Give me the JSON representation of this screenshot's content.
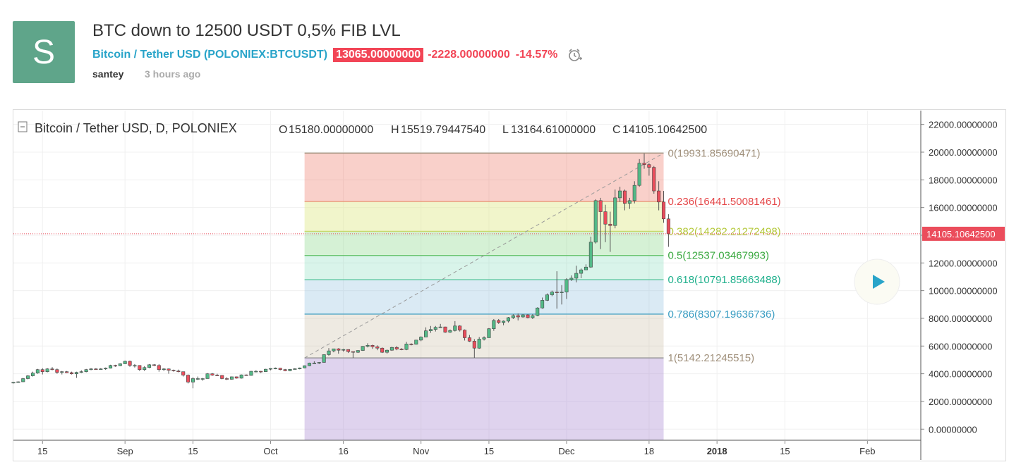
{
  "post": {
    "avatar_letter": "S",
    "title": "BTC down to 12500 USDT 0,5% FIB LVL",
    "symbol_name": "Bitcoin / Tether USD",
    "symbol_ticker": "POLONIEX:BTCUSDT",
    "price": "13065.00000000",
    "change": "-2228.00000000",
    "change_pct": "-14.57%",
    "author": "santey",
    "time_ago": "3 hours ago"
  },
  "colors": {
    "up": "#53b987",
    "down": "#eb4d5c",
    "accent": "#29a4c9",
    "badge": "#f24556"
  },
  "chart_data": {
    "type": "candlestick",
    "legend": {
      "symbol": "Bitcoin / Tether USD, D, POLONIEX",
      "open_label": "O",
      "open": "15180.00000000",
      "high_label": "H",
      "high": "15519.79447540",
      "low_label": "L",
      "low": "13164.61000000",
      "close_label": "C",
      "close": "14105.10642500"
    },
    "ylim": [
      -800,
      23000
    ],
    "y_ticks": [
      {
        "v": 22000,
        "label": "22000.00000000"
      },
      {
        "v": 20000,
        "label": "20000.00000000"
      },
      {
        "v": 18000,
        "label": "18000.00000000"
      },
      {
        "v": 16000,
        "label": "16000.00000000"
      },
      {
        "v": 14000,
        "label": "14000.00000000"
      },
      {
        "v": 12000,
        "label": "12000.00000000"
      },
      {
        "v": 10000,
        "label": "10000.00000000"
      },
      {
        "v": 8000,
        "label": "8000.00000000"
      },
      {
        "v": 6000,
        "label": "6000.00000000"
      },
      {
        "v": 4000,
        "label": "4000.00000000"
      },
      {
        "v": 2000,
        "label": "2000.00000000"
      },
      {
        "v": 0,
        "label": "0.00000000"
      }
    ],
    "x_ticks": [
      {
        "date": "2017-08-15",
        "label": "15",
        "bold": false
      },
      {
        "date": "2017-09-01",
        "label": "Sep",
        "bold": false
      },
      {
        "date": "2017-09-15",
        "label": "15",
        "bold": false
      },
      {
        "date": "2017-10-01",
        "label": "Oct",
        "bold": false
      },
      {
        "date": "2017-10-16",
        "label": "16",
        "bold": false
      },
      {
        "date": "2017-11-01",
        "label": "Nov",
        "bold": false
      },
      {
        "date": "2017-11-15",
        "label": "15",
        "bold": false
      },
      {
        "date": "2017-12-01",
        "label": "Dec",
        "bold": false
      },
      {
        "date": "2017-12-18",
        "label": "18",
        "bold": false
      },
      {
        "date": "2018-01-01",
        "label": "2018",
        "bold": true
      },
      {
        "date": "2018-01-15",
        "label": "15",
        "bold": false
      },
      {
        "date": "2018-02-01",
        "label": "Feb",
        "bold": false
      }
    ],
    "x_start": "2017-08-09",
    "x_end": "2018-02-12",
    "last_price_label": "14105.10642500",
    "last_price": 14105.106425,
    "candles": [
      [
        "2017-08-09",
        3350,
        3400,
        3300,
        3380
      ],
      [
        "2017-08-10",
        3380,
        3450,
        3350,
        3420
      ],
      [
        "2017-08-11",
        3420,
        3700,
        3400,
        3650
      ],
      [
        "2017-08-12",
        3650,
        3900,
        3600,
        3850
      ],
      [
        "2017-08-13",
        3850,
        4150,
        3800,
        4050
      ],
      [
        "2017-08-14",
        4050,
        4350,
        4000,
        4300
      ],
      [
        "2017-08-15",
        4300,
        4400,
        3950,
        4150
      ],
      [
        "2017-08-16",
        4150,
        4400,
        4100,
        4350
      ],
      [
        "2017-08-17",
        4350,
        4480,
        4250,
        4300
      ],
      [
        "2017-08-18",
        4300,
        4380,
        4000,
        4100
      ],
      [
        "2017-08-19",
        4100,
        4200,
        3950,
        4150
      ],
      [
        "2017-08-20",
        4150,
        4200,
        4050,
        4080
      ],
      [
        "2017-08-21",
        4080,
        4150,
        3950,
        4000
      ],
      [
        "2017-08-22",
        4000,
        4150,
        3700,
        4100
      ],
      [
        "2017-08-23",
        4100,
        4250,
        4050,
        4150
      ],
      [
        "2017-08-24",
        4150,
        4350,
        4100,
        4300
      ],
      [
        "2017-08-25",
        4300,
        4400,
        4250,
        4350
      ],
      [
        "2017-08-26",
        4350,
        4400,
        4280,
        4320
      ],
      [
        "2017-08-27",
        4320,
        4400,
        4300,
        4350
      ],
      [
        "2017-08-28",
        4350,
        4450,
        4280,
        4400
      ],
      [
        "2017-08-29",
        4400,
        4650,
        4380,
        4600
      ],
      [
        "2017-08-30",
        4600,
        4650,
        4500,
        4580
      ],
      [
        "2017-08-31",
        4580,
        4750,
        4550,
        4720
      ],
      [
        "2017-09-01",
        4720,
        4950,
        4700,
        4900
      ],
      [
        "2017-09-02",
        4900,
        4950,
        4500,
        4600
      ],
      [
        "2017-09-03",
        4600,
        4700,
        4450,
        4600
      ],
      [
        "2017-09-04",
        4600,
        4620,
        4200,
        4300
      ],
      [
        "2017-09-05",
        4300,
        4550,
        4200,
        4450
      ],
      [
        "2017-09-06",
        4450,
        4700,
        4400,
        4650
      ],
      [
        "2017-09-07",
        4650,
        4700,
        4550,
        4600
      ],
      [
        "2017-09-08",
        4600,
        4700,
        4150,
        4300
      ],
      [
        "2017-09-09",
        4300,
        4400,
        4200,
        4350
      ],
      [
        "2017-09-10",
        4350,
        4380,
        4000,
        4250
      ],
      [
        "2017-09-11",
        4250,
        4300,
        4150,
        4200
      ],
      [
        "2017-09-12",
        4200,
        4300,
        4100,
        4150
      ],
      [
        "2017-09-13",
        4150,
        4150,
        3800,
        3900
      ],
      [
        "2017-09-14",
        3900,
        3950,
        3300,
        3400
      ],
      [
        "2017-09-15",
        3400,
        3750,
        2950,
        3650
      ],
      [
        "2017-09-16",
        3650,
        3800,
        3550,
        3650
      ],
      [
        "2017-09-17",
        3650,
        3700,
        3500,
        3650
      ],
      [
        "2017-09-18",
        3650,
        4050,
        3650,
        4000
      ],
      [
        "2017-09-19",
        4000,
        4050,
        3850,
        3900
      ],
      [
        "2017-09-20",
        3900,
        4000,
        3850,
        3880
      ],
      [
        "2017-09-21",
        3880,
        3900,
        3600,
        3650
      ],
      [
        "2017-09-22",
        3650,
        3750,
        3550,
        3600
      ],
      [
        "2017-09-23",
        3600,
        3800,
        3580,
        3780
      ],
      [
        "2017-09-24",
        3780,
        3800,
        3650,
        3680
      ],
      [
        "2017-09-25",
        3680,
        3950,
        3650,
        3920
      ],
      [
        "2017-09-26",
        3920,
        3950,
        3850,
        3880
      ],
      [
        "2017-09-27",
        3880,
        4200,
        3860,
        4180
      ],
      [
        "2017-09-28",
        4180,
        4250,
        4100,
        4180
      ],
      [
        "2017-09-29",
        4180,
        4200,
        4050,
        4150
      ],
      [
        "2017-09-30",
        4150,
        4350,
        4130,
        4330
      ],
      [
        "2017-10-01",
        4330,
        4400,
        4250,
        4380
      ],
      [
        "2017-10-02",
        4380,
        4450,
        4330,
        4400
      ],
      [
        "2017-10-03",
        4400,
        4420,
        4250,
        4300
      ],
      [
        "2017-10-04",
        4300,
        4350,
        4180,
        4220
      ],
      [
        "2017-10-05",
        4220,
        4350,
        4180,
        4320
      ],
      [
        "2017-10-06",
        4320,
        4400,
        4300,
        4360
      ],
      [
        "2017-10-07",
        4360,
        4450,
        4320,
        4420
      ],
      [
        "2017-10-08",
        4420,
        4600,
        4400,
        4580
      ],
      [
        "2017-10-09",
        4580,
        4800,
        4550,
        4770
      ],
      [
        "2017-10-10",
        4770,
        4900,
        4750,
        4770
      ],
      [
        "2017-10-11",
        4770,
        4850,
        4700,
        4820
      ],
      [
        "2017-10-12",
        4820,
        5400,
        4800,
        5380
      ],
      [
        "2017-10-13",
        5380,
        5850,
        5300,
        5650
      ],
      [
        "2017-10-14",
        5650,
        5800,
        5550,
        5800
      ],
      [
        "2017-10-15",
        5800,
        5850,
        5450,
        5700
      ],
      [
        "2017-10-16",
        5700,
        5800,
        5600,
        5750
      ],
      [
        "2017-10-17",
        5750,
        5760,
        5500,
        5600
      ],
      [
        "2017-10-18",
        5600,
        5600,
        5150,
        5550
      ],
      [
        "2017-10-19",
        5550,
        5700,
        5500,
        5680
      ],
      [
        "2017-10-20",
        5680,
        6000,
        5650,
        5980
      ],
      [
        "2017-10-21",
        5980,
        6200,
        5900,
        6050
      ],
      [
        "2017-10-22",
        6050,
        6100,
        5800,
        5950
      ],
      [
        "2017-10-23",
        5950,
        6050,
        5700,
        5850
      ],
      [
        "2017-10-24",
        5850,
        5900,
        5500,
        5550
      ],
      [
        "2017-10-25",
        5550,
        5750,
        5450,
        5700
      ],
      [
        "2017-10-26",
        5700,
        5950,
        5650,
        5900
      ],
      [
        "2017-10-27",
        5900,
        6000,
        5700,
        5780
      ],
      [
        "2017-10-28",
        5780,
        5850,
        5700,
        5750
      ],
      [
        "2017-10-29",
        5750,
        6300,
        5700,
        6150
      ],
      [
        "2017-10-30",
        6150,
        6200,
        6050,
        6130
      ],
      [
        "2017-10-31",
        6130,
        6450,
        6100,
        6430
      ],
      [
        "2017-11-01",
        6430,
        6700,
        6350,
        6650
      ],
      [
        "2017-11-02",
        6650,
        7350,
        6650,
        7100
      ],
      [
        "2017-11-03",
        7100,
        7450,
        6950,
        7200
      ],
      [
        "2017-11-04",
        7200,
        7450,
        7050,
        7350
      ],
      [
        "2017-11-05",
        7350,
        7600,
        7300,
        7380
      ],
      [
        "2017-11-06",
        7380,
        7400,
        6950,
        7000
      ],
      [
        "2017-11-07",
        7000,
        7200,
        6950,
        7120
      ],
      [
        "2017-11-08",
        7120,
        7800,
        7050,
        7450
      ],
      [
        "2017-11-09",
        7450,
        7500,
        7050,
        7150
      ],
      [
        "2017-11-10",
        7150,
        7200,
        6400,
        6600
      ],
      [
        "2017-11-11",
        6600,
        6800,
        6300,
        6350
      ],
      [
        "2017-11-12",
        6350,
        6500,
        5150,
        5850
      ],
      [
        "2017-11-13",
        5850,
        6650,
        5800,
        6500
      ],
      [
        "2017-11-14",
        6500,
        6700,
        6400,
        6600
      ],
      [
        "2017-11-15",
        6600,
        7300,
        6600,
        7250
      ],
      [
        "2017-11-16",
        7250,
        7950,
        7100,
        7850
      ],
      [
        "2017-11-17",
        7850,
        7950,
        7600,
        7700
      ],
      [
        "2017-11-18",
        7700,
        7850,
        7500,
        7800
      ],
      [
        "2017-11-19",
        7800,
        8100,
        7700,
        8050
      ],
      [
        "2017-11-20",
        8050,
        8300,
        7950,
        8200
      ],
      [
        "2017-11-21",
        8200,
        8350,
        7850,
        8100
      ],
      [
        "2017-11-22",
        8100,
        8300,
        8050,
        8250
      ],
      [
        "2017-11-23",
        8250,
        8300,
        8000,
        8050
      ],
      [
        "2017-11-24",
        8050,
        8300,
        7950,
        8200
      ],
      [
        "2017-11-25",
        8200,
        8800,
        8150,
        8750
      ],
      [
        "2017-11-26",
        8750,
        9500,
        8700,
        9300
      ],
      [
        "2017-11-27",
        9300,
        9800,
        9250,
        9700
      ],
      [
        "2017-11-28",
        9700,
        10000,
        9600,
        9900
      ],
      [
        "2017-11-29",
        9900,
        11400,
        8700,
        9850
      ],
      [
        "2017-11-30",
        9850,
        10400,
        9000,
        9900
      ],
      [
        "2017-12-01",
        9900,
        10900,
        9400,
        10800
      ],
      [
        "2017-12-02",
        10800,
        11100,
        10700,
        10900
      ],
      [
        "2017-12-03",
        10900,
        11800,
        10600,
        11250
      ],
      [
        "2017-12-04",
        11250,
        11600,
        10900,
        11500
      ],
      [
        "2017-12-05",
        11500,
        11900,
        11500,
        11700
      ],
      [
        "2017-12-06",
        11700,
        13900,
        11650,
        13500
      ],
      [
        "2017-12-07",
        13500,
        16600,
        13400,
        16500
      ],
      [
        "2017-12-08",
        16500,
        16700,
        13000,
        15700
      ],
      [
        "2017-12-09",
        15700,
        16200,
        13500,
        14800
      ],
      [
        "2017-12-10",
        14800,
        15700,
        12800,
        14700
      ],
      [
        "2017-12-11",
        14700,
        17300,
        14500,
        16700
      ],
      [
        "2017-12-12",
        16700,
        17500,
        16400,
        17200
      ],
      [
        "2017-12-13",
        17200,
        17300,
        15800,
        16300
      ],
      [
        "2017-12-14",
        16300,
        16700,
        15900,
        16500
      ],
      [
        "2017-12-15",
        16500,
        17900,
        16300,
        17600
      ],
      [
        "2017-12-16",
        17600,
        19500,
        17500,
        19200
      ],
      [
        "2017-12-17",
        19200,
        19900,
        18800,
        19100
      ],
      [
        "2017-12-18",
        19100,
        19200,
        18300,
        18900
      ],
      [
        "2017-12-19",
        18900,
        19000,
        17000,
        17200
      ],
      [
        "2017-12-20",
        17200,
        17900,
        15800,
        16400
      ],
      [
        "2017-12-21",
        16400,
        17200,
        14900,
        15180
      ],
      [
        "2017-12-22",
        15180,
        15520,
        13164,
        14105
      ]
    ],
    "fib": {
      "start_date": "2017-10-08",
      "end_date": "2017-12-21",
      "levels": [
        {
          "ratio": "0",
          "value": 19931.85690471,
          "text": "0(19931.85690471)",
          "line": "#a0907b",
          "fill": "rgba(235,100,80,0.30)",
          "label_color": "#a0907b"
        },
        {
          "ratio": "0.236",
          "value": 16441.50081461,
          "text": "0.236(16441.50081461)",
          "line": "#e98c6f",
          "fill": "rgba(223,233,140,0.45)",
          "label_color": "#e5484a"
        },
        {
          "ratio": "0.382",
          "value": 14282.21272498,
          "text": "0.382(14282.21272498)",
          "line": "#c6d96a",
          "fill": "rgba(150,220,150,0.40)",
          "label_color": "#b4c83a"
        },
        {
          "ratio": "0.5",
          "value": 12537.03467993,
          "text": "0.5(12537.03467993)",
          "line": "#5dbf63",
          "fill": "rgba(130,220,185,0.30)",
          "label_color": "#38a83e"
        },
        {
          "ratio": "0.618",
          "value": 10791.85663488,
          "text": "0.618(10791.85663488)",
          "line": "#5fc8a0",
          "fill": "rgba(140,190,220,0.32)",
          "label_color": "#1fb08c"
        },
        {
          "ratio": "0.786",
          "value": 8307.19636736,
          "text": "0.786(8307.19636736)",
          "line": "#4ca3c4",
          "fill": "rgba(200,185,160,0.30)",
          "label_color": "#3a9dc2"
        },
        {
          "ratio": "1",
          "value": 5142.21245515,
          "text": "1(5142.21245515)",
          "line": "#8a8a8a",
          "fill": "rgba(170,140,210,0.38)",
          "label_color": "#a0907b"
        }
      ]
    }
  }
}
